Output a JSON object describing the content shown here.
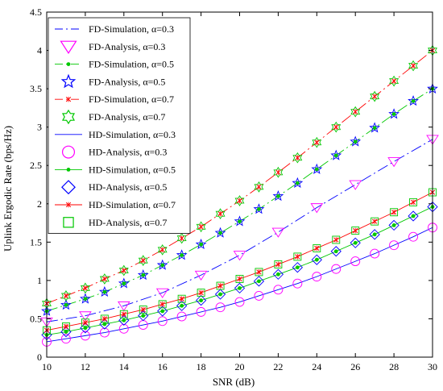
{
  "chart_data": {
    "type": "line",
    "xlabel": "SNR (dB)",
    "ylabel": "Uplink Ergodic Rate (bps/Hz)",
    "xlim": [
      10,
      30
    ],
    "ylim": [
      0,
      4.5
    ],
    "xticks": [
      10,
      12,
      14,
      16,
      18,
      20,
      22,
      24,
      26,
      28,
      30
    ],
    "yticks": [
      0,
      0.5,
      1,
      1.5,
      2,
      2.5,
      3,
      3.5,
      4,
      4.5
    ],
    "xtick_labels": [
      "10",
      "12",
      "14",
      "16",
      "18",
      "20",
      "22",
      "24",
      "26",
      "28",
      "30"
    ],
    "ytick_labels": [
      "0",
      "0.5",
      "1",
      "1.5",
      "2",
      "2.5",
      "3",
      "3.5",
      "4",
      "4.5"
    ],
    "grid": false,
    "legend_position": "top-left",
    "series": [
      {
        "name": "FD-Simulation, α=0.3",
        "kind": "line",
        "dash": "dashdot",
        "color": "#0000ff",
        "marker": "none",
        "x": [
          10,
          12,
          14,
          16,
          18,
          20,
          22,
          24,
          26,
          28,
          30
        ],
        "y": [
          0.46,
          0.54,
          0.67,
          0.84,
          1.07,
          1.33,
          1.63,
          1.95,
          2.25,
          2.55,
          2.84
        ]
      },
      {
        "name": "FD-Analysis, α=0.3",
        "kind": "marker",
        "color": "#ff00ff",
        "marker": "triangle-down",
        "x": [
          10,
          12,
          14,
          16,
          18,
          20,
          22,
          24,
          26,
          28,
          30
        ],
        "y": [
          0.46,
          0.54,
          0.67,
          0.84,
          1.07,
          1.33,
          1.63,
          1.95,
          2.25,
          2.55,
          2.84
        ]
      },
      {
        "name": "FD-Simulation, α=0.5",
        "kind": "line",
        "dash": "dashdot",
        "color": "#00c800",
        "marker": "dot",
        "x": [
          10,
          11,
          12,
          13,
          14,
          15,
          16,
          17,
          18,
          19,
          20,
          21,
          22,
          23,
          24,
          25,
          26,
          27,
          28,
          29,
          30
        ],
        "y": [
          0.6,
          0.68,
          0.76,
          0.85,
          0.96,
          1.07,
          1.2,
          1.33,
          1.47,
          1.62,
          1.77,
          1.93,
          2.1,
          2.27,
          2.45,
          2.63,
          2.81,
          2.99,
          3.17,
          3.34,
          3.5
        ]
      },
      {
        "name": "FD-Analysis, α=0.5",
        "kind": "marker",
        "color": "#0000ff",
        "marker": "star",
        "x": [
          10,
          11,
          12,
          13,
          14,
          15,
          16,
          17,
          18,
          19,
          20,
          21,
          22,
          23,
          24,
          25,
          26,
          27,
          28,
          29,
          30
        ],
        "y": [
          0.6,
          0.68,
          0.76,
          0.85,
          0.96,
          1.07,
          1.2,
          1.33,
          1.47,
          1.62,
          1.77,
          1.93,
          2.1,
          2.27,
          2.45,
          2.63,
          2.81,
          2.99,
          3.17,
          3.34,
          3.5
        ]
      },
      {
        "name": "FD-Simulation, α=0.7",
        "kind": "line",
        "dash": "dashdot",
        "color": "#ff0000",
        "marker": "x",
        "x": [
          10,
          11,
          12,
          13,
          14,
          15,
          16,
          17,
          18,
          19,
          20,
          21,
          22,
          23,
          24,
          25,
          26,
          27,
          28,
          29,
          30
        ],
        "y": [
          0.7,
          0.8,
          0.9,
          1.02,
          1.13,
          1.26,
          1.4,
          1.55,
          1.7,
          1.87,
          2.04,
          2.22,
          2.41,
          2.6,
          2.8,
          3.0,
          3.2,
          3.4,
          3.6,
          3.8,
          4.0
        ]
      },
      {
        "name": "FD-Analysis, α=0.7",
        "kind": "marker",
        "color": "#00c800",
        "marker": "hexagram",
        "x": [
          10,
          11,
          12,
          13,
          14,
          15,
          16,
          17,
          18,
          19,
          20,
          21,
          22,
          23,
          24,
          25,
          26,
          27,
          28,
          29,
          30
        ],
        "y": [
          0.7,
          0.8,
          0.9,
          1.02,
          1.13,
          1.26,
          1.4,
          1.55,
          1.7,
          1.87,
          2.04,
          2.22,
          2.41,
          2.6,
          2.8,
          3.0,
          3.2,
          3.4,
          3.6,
          3.8,
          4.0
        ]
      },
      {
        "name": "HD-Simulation, α=0.3",
        "kind": "line",
        "dash": "solid",
        "color": "#0000ff",
        "marker": "none",
        "x": [
          10,
          11,
          12,
          13,
          14,
          15,
          16,
          17,
          18,
          19,
          20,
          21,
          22,
          23,
          24,
          25,
          26,
          27,
          28,
          29,
          30
        ],
        "y": [
          0.2,
          0.24,
          0.28,
          0.32,
          0.37,
          0.42,
          0.47,
          0.53,
          0.59,
          0.65,
          0.72,
          0.8,
          0.88,
          0.96,
          1.05,
          1.15,
          1.25,
          1.35,
          1.46,
          1.57,
          1.69
        ]
      },
      {
        "name": "HD-Analysis, α=0.3",
        "kind": "marker",
        "color": "#ff00ff",
        "marker": "circle",
        "x": [
          10,
          11,
          12,
          13,
          14,
          15,
          16,
          17,
          18,
          19,
          20,
          21,
          22,
          23,
          24,
          25,
          26,
          27,
          28,
          29,
          30
        ],
        "y": [
          0.2,
          0.24,
          0.28,
          0.32,
          0.37,
          0.42,
          0.47,
          0.53,
          0.59,
          0.65,
          0.72,
          0.8,
          0.88,
          0.96,
          1.05,
          1.15,
          1.25,
          1.35,
          1.46,
          1.57,
          1.69
        ]
      },
      {
        "name": "HD-Simulation, α=0.5",
        "kind": "line",
        "dash": "solid",
        "color": "#00c800",
        "marker": "dot",
        "x": [
          10,
          11,
          12,
          13,
          14,
          15,
          16,
          17,
          18,
          19,
          20,
          21,
          22,
          23,
          24,
          25,
          26,
          27,
          28,
          29,
          30
        ],
        "y": [
          0.29,
          0.33,
          0.38,
          0.43,
          0.48,
          0.54,
          0.6,
          0.67,
          0.74,
          0.82,
          0.9,
          0.99,
          1.08,
          1.17,
          1.27,
          1.38,
          1.49,
          1.6,
          1.72,
          1.84,
          1.96
        ]
      },
      {
        "name": "HD-Analysis, α=0.5",
        "kind": "marker",
        "color": "#0000ff",
        "marker": "diamond",
        "x": [
          10,
          11,
          12,
          13,
          14,
          15,
          16,
          17,
          18,
          19,
          20,
          21,
          22,
          23,
          24,
          25,
          26,
          27,
          28,
          29,
          30
        ],
        "y": [
          0.29,
          0.33,
          0.38,
          0.43,
          0.48,
          0.54,
          0.6,
          0.67,
          0.74,
          0.82,
          0.9,
          0.99,
          1.08,
          1.17,
          1.27,
          1.38,
          1.49,
          1.6,
          1.72,
          1.84,
          1.96
        ]
      },
      {
        "name": "HD-Simulation, α=0.7",
        "kind": "line",
        "dash": "solid",
        "color": "#ff0000",
        "marker": "x",
        "x": [
          10,
          11,
          12,
          13,
          14,
          15,
          16,
          17,
          18,
          19,
          20,
          21,
          22,
          23,
          24,
          25,
          26,
          27,
          28,
          29,
          30
        ],
        "y": [
          0.35,
          0.4,
          0.45,
          0.5,
          0.56,
          0.62,
          0.69,
          0.76,
          0.84,
          0.93,
          1.02,
          1.11,
          1.21,
          1.31,
          1.42,
          1.53,
          1.65,
          1.77,
          1.89,
          2.02,
          2.15
        ]
      },
      {
        "name": "HD-Analysis, α=0.7",
        "kind": "marker",
        "color": "#00c800",
        "marker": "square",
        "x": [
          10,
          11,
          12,
          13,
          14,
          15,
          16,
          17,
          18,
          19,
          20,
          21,
          22,
          23,
          24,
          25,
          26,
          27,
          28,
          29,
          30
        ],
        "y": [
          0.35,
          0.4,
          0.45,
          0.5,
          0.56,
          0.62,
          0.69,
          0.76,
          0.84,
          0.93,
          1.02,
          1.11,
          1.21,
          1.31,
          1.42,
          1.53,
          1.65,
          1.77,
          1.89,
          2.02,
          2.15
        ]
      }
    ]
  }
}
